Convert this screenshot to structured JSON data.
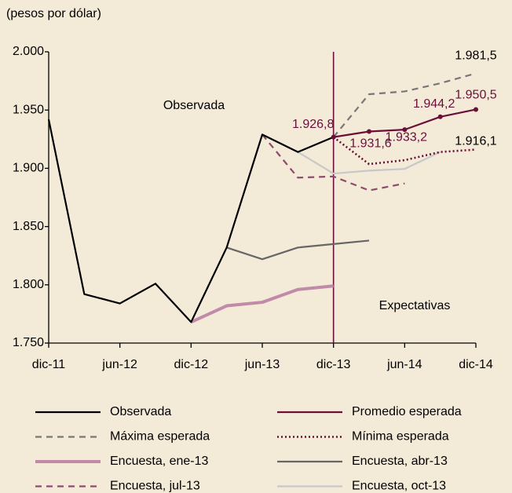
{
  "chart_data": {
    "type": "line",
    "y_label": "(pesos por dólar)",
    "categories": [
      "dic-11",
      null,
      "jun-12",
      null,
      "dic-12",
      null,
      "jun-13",
      null,
      "dic-13",
      null,
      "jun-14",
      null,
      "dic-14"
    ],
    "ylim": [
      1750,
      2000
    ],
    "yticks": [
      {
        "value": 1750,
        "label": "1.750"
      },
      {
        "value": 1800,
        "label": "1.800"
      },
      {
        "value": 1850,
        "label": "1.850"
      },
      {
        "value": 1900,
        "label": "1.900"
      },
      {
        "value": 1950,
        "label": "1.950"
      },
      {
        "value": 2000,
        "label": "2.000"
      }
    ],
    "annotations": [
      "Observada",
      "Expectativas"
    ],
    "series": [
      {
        "name": "Observada",
        "color": "#000000",
        "style": "solid",
        "values": [
          1942,
          1792,
          1784,
          1801,
          1768,
          1832,
          1929,
          1914,
          1926.8,
          null,
          null,
          null,
          null
        ]
      },
      {
        "name": "Promedio esperada",
        "color": "#6b0f3a",
        "style": "solid",
        "markers": true,
        "values": [
          null,
          null,
          null,
          null,
          null,
          null,
          null,
          null,
          1926.8,
          1931.6,
          1933.2,
          1944.2,
          1950.5
        ],
        "value_labels": [
          null,
          null,
          null,
          null,
          null,
          null,
          null,
          null,
          "1.926,8",
          "1.931,6",
          "1.933,2",
          "1.944,2",
          "1.950,5"
        ]
      },
      {
        "name": "Máxima esperada",
        "color": "#777777",
        "style": "dashed",
        "values": [
          null,
          null,
          null,
          null,
          null,
          null,
          null,
          null,
          1926.8,
          1963.6,
          1966,
          1973,
          1981.5
        ],
        "value_labels": [
          null,
          null,
          null,
          null,
          null,
          null,
          null,
          null,
          null,
          null,
          null,
          null,
          "1.981,5"
        ]
      },
      {
        "name": "Mínima esperada",
        "color": "#6b0f3a",
        "style": "dotted",
        "values": [
          null,
          null,
          null,
          null,
          null,
          null,
          null,
          null,
          1926.8,
          1903.6,
          1907,
          1914,
          1916.1
        ],
        "value_labels": [
          null,
          null,
          null,
          null,
          null,
          null,
          null,
          null,
          null,
          null,
          null,
          null,
          "1.916,1"
        ]
      },
      {
        "name": "Encuesta, ene-13",
        "color": "#c08aa8",
        "style": "thick",
        "values": [
          null,
          null,
          null,
          null,
          1768,
          1782,
          1785,
          1796,
          1799,
          null,
          null,
          null,
          null
        ]
      },
      {
        "name": "Encuesta, abr-13",
        "color": "#666666",
        "style": "solid",
        "values": [
          null,
          null,
          null,
          null,
          null,
          1832,
          1822,
          1832,
          1835,
          1838,
          null,
          null,
          null
        ]
      },
      {
        "name": "Encuesta, jul-13",
        "color": "#8e4a6e",
        "style": "dashed",
        "values": [
          null,
          null,
          null,
          null,
          null,
          null,
          1929,
          1892,
          1893,
          1881,
          1887,
          null,
          null
        ]
      },
      {
        "name": "Encuesta, oct-13",
        "color": "#c8c8c8",
        "style": "solid",
        "values": [
          null,
          null,
          null,
          null,
          null,
          null,
          null,
          1914,
          1895.5,
          1898,
          1899.5,
          1914,
          null
        ]
      }
    ]
  }
}
